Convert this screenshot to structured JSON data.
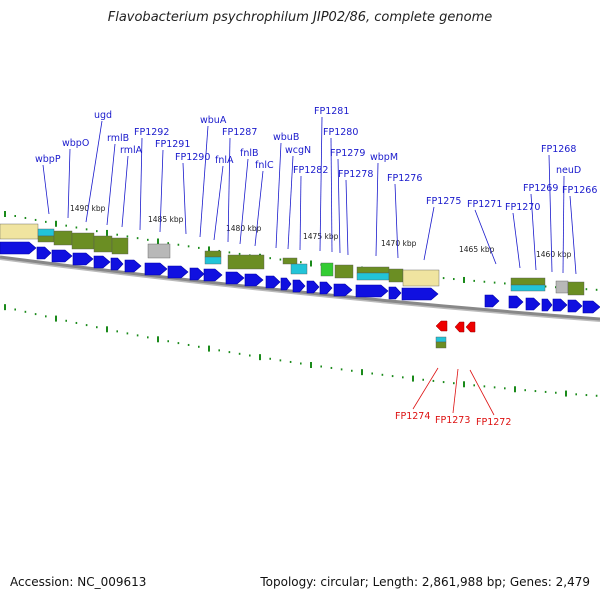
{
  "title": "Flavobacterium psychrophilum JIP02/86, complete genome",
  "footer": {
    "accession": "Accession: NC_009613",
    "summary": "Topology: circular; Length: 2,861,988 bp; Genes: 2,479"
  },
  "colors": {
    "forward_gene": "#1010e0",
    "reverse_gene": "#ee0000",
    "backbone": "#888888",
    "tick": "#1a8a1a",
    "label_forward": "#1a1acc",
    "label_reverse": "#dd1111",
    "cog_olive": "#6b8e23",
    "cog_cyan": "#22c4d8",
    "cog_yellow": "#f0e4a0",
    "cog_grey": "#b8b8b8",
    "cog_green": "#33cc33"
  },
  "scale_labels": [
    "1490 kbp",
    "1485 kbp",
    "1480 kbp",
    "1475 kbp",
    "1470 kbp",
    "1465 kbp",
    "1460 kbp"
  ],
  "forward_labels": [
    "wbpP",
    "wbpO",
    "ugd",
    "rmlB",
    "rmlA",
    "FP1292",
    "FP1291",
    "FP1290",
    "wbuA",
    "fnlA",
    "FP1287",
    "fnlB",
    "fnlC",
    "wbuB",
    "wcgN",
    "FP1282",
    "FP1281",
    "FP1280",
    "FP1279",
    "FP1278",
    "wbpM",
    "FP1276",
    "FP1275",
    "FP1271",
    "FP1270",
    "FP1269",
    "FP1268",
    "neuD",
    "FP1266"
  ],
  "reverse_labels": [
    "FP1274",
    "FP1273",
    "FP1272"
  ]
}
